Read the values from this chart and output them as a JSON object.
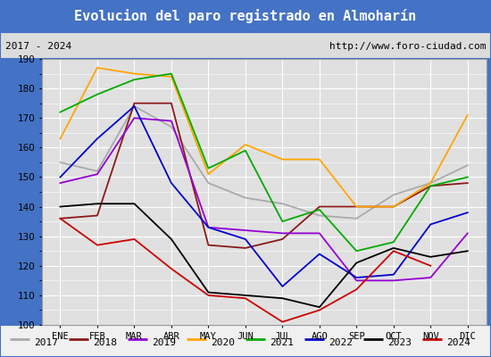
{
  "title": "Evolucion del paro registrado en Almoharín",
  "subtitle_left": "2017 - 2024",
  "subtitle_right": "http://www.foro-ciudad.com",
  "ylim": [
    100,
    190
  ],
  "yticks": [
    100,
    110,
    120,
    130,
    140,
    150,
    160,
    170,
    180,
    190
  ],
  "months": [
    "ENE",
    "FEB",
    "MAR",
    "ABR",
    "MAY",
    "JUN",
    "JUL",
    "AGO",
    "SEP",
    "OCT",
    "NOV",
    "DIC"
  ],
  "series": {
    "2017": {
      "color": "#aaaaaa",
      "data": [
        155,
        152,
        174,
        167,
        148,
        143,
        141,
        137,
        136,
        144,
        148,
        154
      ]
    },
    "2018": {
      "color": "#8b1a1a",
      "data": [
        136,
        137,
        175,
        175,
        127,
        126,
        129,
        140,
        140,
        140,
        147,
        148
      ]
    },
    "2019": {
      "color": "#9400d3",
      "data": [
        148,
        151,
        170,
        169,
        133,
        132,
        131,
        131,
        115,
        115,
        116,
        131
      ]
    },
    "2020": {
      "color": "#ffa500",
      "data": [
        163,
        187,
        185,
        184,
        151,
        161,
        156,
        156,
        140,
        140,
        148,
        171
      ]
    },
    "2021": {
      "color": "#00aa00",
      "data": [
        172,
        178,
        183,
        185,
        153,
        159,
        135,
        139,
        125,
        128,
        147,
        150
      ]
    },
    "2022": {
      "color": "#0000cc",
      "data": [
        150,
        163,
        174,
        148,
        133,
        129,
        113,
        124,
        116,
        117,
        134,
        138
      ]
    },
    "2023": {
      "color": "#000000",
      "data": [
        140,
        141,
        141,
        129,
        111,
        110,
        109,
        106,
        121,
        126,
        123,
        125
      ]
    },
    "2024": {
      "color": "#cc0000",
      "data": [
        136,
        127,
        129,
        119,
        110,
        109,
        101,
        105,
        112,
        125,
        120,
        null
      ]
    }
  },
  "title_bg": "#4472c4",
  "title_color": "#ffffff",
  "subtitle_bg": "#dcdcdc",
  "plot_bg": "#e0e0e0",
  "grid_color": "#ffffff",
  "legend_bg": "#f0f0f0",
  "border_color": "#4472c4",
  "title_fontsize": 11,
  "subtitle_fontsize": 8,
  "tick_fontsize": 7.5,
  "legend_fontsize": 8
}
